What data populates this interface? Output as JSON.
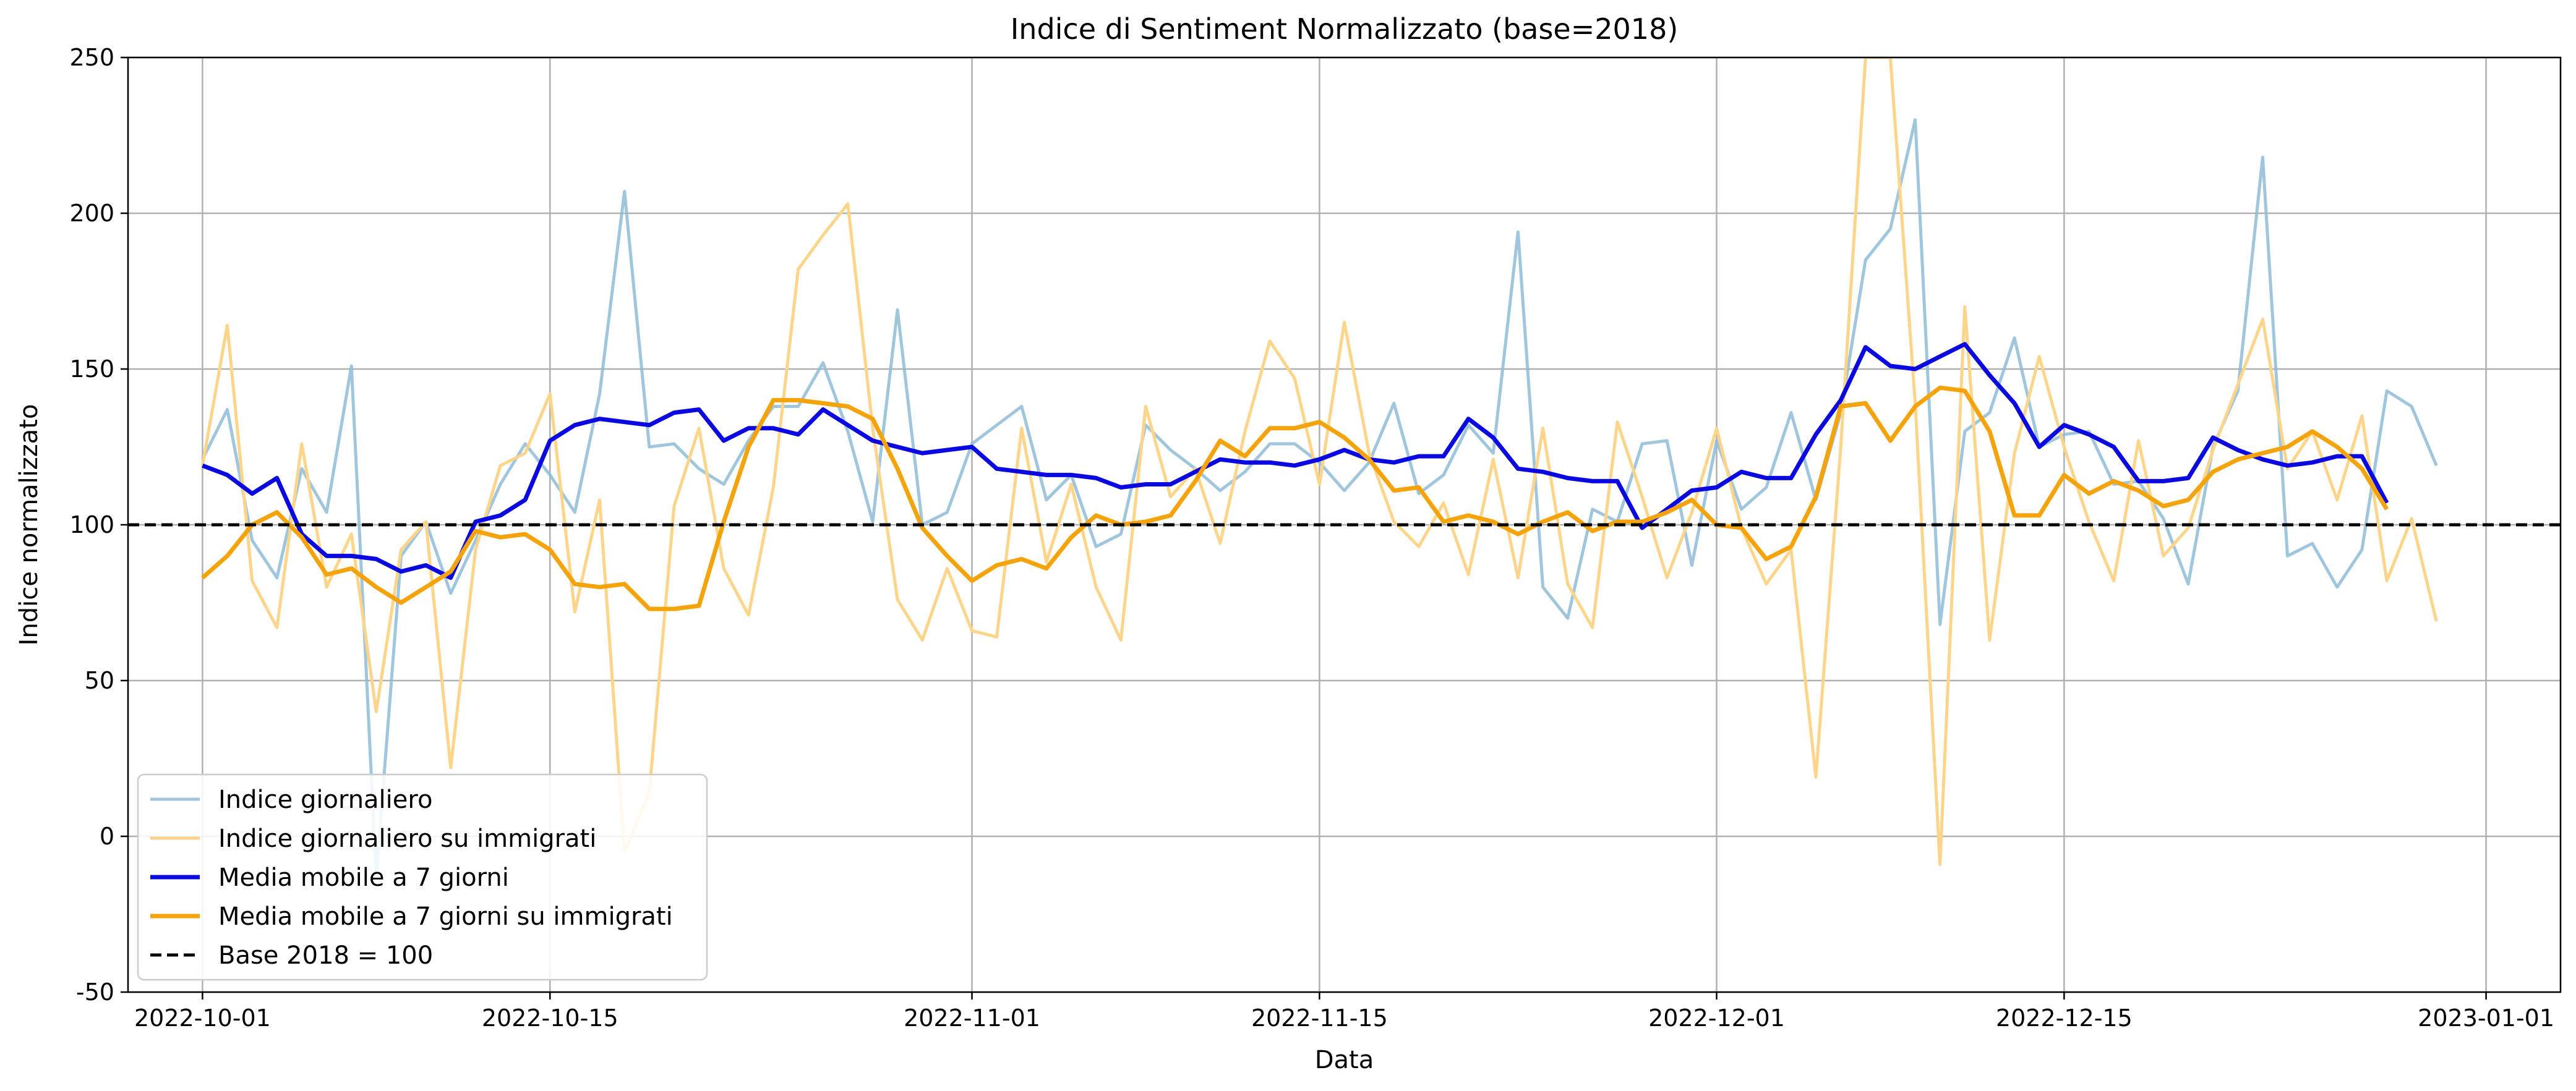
{
  "chart_data": {
    "type": "line",
    "title": "Indice di Sentiment Normalizzato (base=2018)",
    "xlabel": "Data",
    "ylabel": "Indice normalizzato",
    "xlim": [
      "2022-09-28",
      "2023-01-04"
    ],
    "ylim": [
      -50,
      250
    ],
    "grid": true,
    "legend_position": "lower-left",
    "x_ticks": [
      "2022-10-01",
      "2022-10-15",
      "2022-11-01",
      "2022-11-15",
      "2022-12-01",
      "2022-12-15",
      "2023-01-01"
    ],
    "y_ticks": [
      -50,
      0,
      50,
      100,
      150,
      200,
      250
    ],
    "x_start": "2022-10-01",
    "series": [
      {
        "name": "Indice giornaliero",
        "color": "#8fbcd8",
        "values": [
          121,
          137,
          95,
          83,
          118,
          104,
          151,
          -13,
          90,
          101,
          78,
          95,
          113,
          126,
          116,
          104,
          142,
          207,
          125,
          126,
          118,
          113,
          127,
          138,
          138,
          152,
          130,
          101,
          169,
          100,
          104,
          126,
          132,
          138,
          108,
          116,
          93,
          97,
          132,
          124,
          118,
          111,
          117,
          126,
          126,
          120,
          111,
          120,
          139,
          110,
          116,
          132,
          123,
          194,
          80,
          70,
          105,
          101,
          126,
          127,
          87,
          127,
          105,
          112,
          136,
          108,
          136,
          185,
          195,
          230,
          68,
          130,
          136,
          160,
          125,
          129,
          130,
          113,
          114,
          102,
          81,
          125,
          143,
          218,
          90,
          94,
          80,
          92,
          143,
          138,
          119
        ]
      },
      {
        "name": "Indice giornaliero su immigrati",
        "color": "#fdd58a",
        "values": [
          119,
          164,
          82,
          67,
          126,
          80,
          97,
          40,
          92,
          101,
          22,
          92,
          119,
          123,
          142,
          72,
          108,
          -5,
          14,
          106,
          131,
          86,
          71,
          112,
          182,
          193,
          203,
          131,
          76,
          63,
          86,
          66,
          64,
          131,
          88,
          113,
          80,
          63,
          138,
          109,
          118,
          94,
          130,
          159,
          147,
          113,
          165,
          123,
          101,
          93,
          107,
          84,
          121,
          83,
          131,
          81,
          67,
          133,
          109,
          83,
          104,
          131,
          99,
          81,
          92,
          19,
          125,
          250,
          250,
          139,
          -9,
          170,
          63,
          123,
          154,
          125,
          101,
          82,
          127,
          90,
          99,
          124,
          145,
          166,
          118,
          130,
          108,
          135,
          82,
          102,
          69
        ]
      },
      {
        "name": "Media mobile a 7 giorni",
        "color": "#0a0ae0",
        "values": [
          119,
          116,
          110,
          115,
          97,
          90,
          90,
          89,
          85,
          87,
          83,
          101,
          103,
          108,
          127,
          132,
          134,
          133,
          132,
          136,
          137,
          127,
          131,
          131,
          129,
          137,
          132,
          127,
          125,
          123,
          124,
          125,
          118,
          117,
          116,
          116,
          115,
          112,
          113,
          113,
          117,
          121,
          120,
          120,
          119,
          121,
          124,
          121,
          120,
          122,
          122,
          134,
          128,
          118,
          117,
          115,
          114,
          114,
          99,
          105,
          111,
          112,
          117,
          115,
          115,
          129,
          140,
          157,
          151,
          150,
          154,
          158,
          148,
          139,
          125,
          132,
          129,
          125,
          114,
          114,
          115,
          128,
          124,
          121,
          119,
          120,
          122,
          122,
          107
        ]
      },
      {
        "name": "Media mobile a 7 giorni su immigrati",
        "color": "#f5a30a",
        "values": [
          83,
          90,
          100,
          104,
          96,
          84,
          86,
          80,
          75,
          80,
          85,
          98,
          96,
          97,
          92,
          81,
          80,
          81,
          73,
          73,
          74,
          101,
          125,
          140,
          140,
          139,
          138,
          134,
          118,
          99,
          90,
          82,
          87,
          89,
          86,
          96,
          103,
          100,
          101,
          103,
          114,
          127,
          122,
          131,
          131,
          133,
          128,
          121,
          111,
          112,
          101,
          103,
          101,
          97,
          101,
          104,
          98,
          101,
          101,
          104,
          108,
          100,
          99,
          89,
          93,
          109,
          138,
          139,
          127,
          138,
          144,
          143,
          130,
          103,
          103,
          116,
          110,
          114,
          111,
          106,
          108,
          117,
          121,
          123,
          125,
          130,
          125,
          118,
          105
        ]
      },
      {
        "name": "Base 2018 = 100",
        "color": "#000000",
        "dashed": true,
        "values": [
          100
        ]
      }
    ]
  }
}
